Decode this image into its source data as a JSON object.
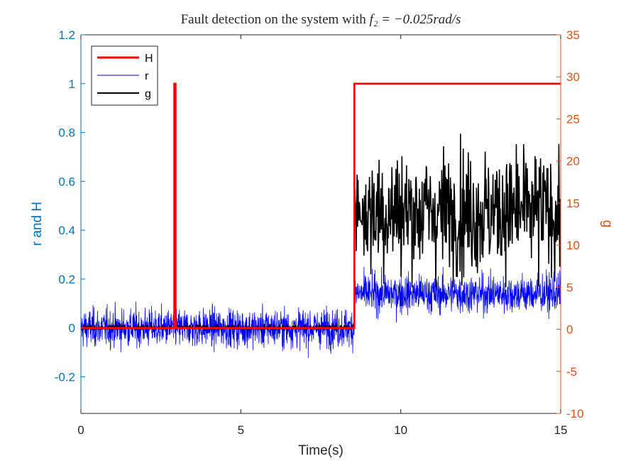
{
  "chart_data": {
    "type": "line",
    "title": "Fault detection on the system with ",
    "title_math": "f₂ = −0.025rad/s",
    "xlabel": "Time(s)",
    "ylabel_left": "r and H",
    "ylabel_right": "g",
    "xlim": [
      0,
      15
    ],
    "ylim_left": [
      -0.35,
      1.2
    ],
    "ylim_right": [
      -10,
      35
    ],
    "xticks": [
      "0",
      "5",
      "10",
      "15"
    ],
    "yticks_left": [
      "-0.2",
      "0",
      "0.2",
      "0.4",
      "0.6",
      "0.8",
      "1",
      "1.2"
    ],
    "yticks_right": [
      "-10",
      "-5",
      "0",
      "5",
      "10",
      "15",
      "20",
      "25",
      "30",
      "35"
    ],
    "legend_position": "top-left",
    "grid": false,
    "colors": {
      "H": "#FF0000",
      "r": "#0000FF",
      "g": "#000000",
      "left_axis": "#0072BD",
      "right_axis": "#D95319"
    },
    "series": [
      {
        "name": "H",
        "axis": "left",
        "x": [
          0,
          2.92,
          2.92,
          2.96,
          2.96,
          8.55,
          8.55,
          15
        ],
        "y": [
          0,
          0,
          1,
          1,
          0,
          0,
          1,
          1
        ]
      },
      {
        "name": "r",
        "axis": "left",
        "segments": [
          {
            "x_range": [
              0,
              8.55
            ],
            "mean": 0.0,
            "noise_range": [
              -0.2,
              0.18
            ]
          },
          {
            "x_range": [
              8.55,
              15
            ],
            "mean": 0.14,
            "noise_range": [
              -0.06,
              0.25
            ]
          }
        ]
      },
      {
        "name": "g",
        "axis": "right",
        "segments": [
          {
            "x_range": [
              0,
              8.55
            ],
            "mean": 0.2,
            "noise_range": [
              0,
              1
            ]
          },
          {
            "x_range": [
              8.55,
              15
            ],
            "mean": 14,
            "noise_range": [
              5,
              27
            ]
          }
        ]
      }
    ]
  }
}
